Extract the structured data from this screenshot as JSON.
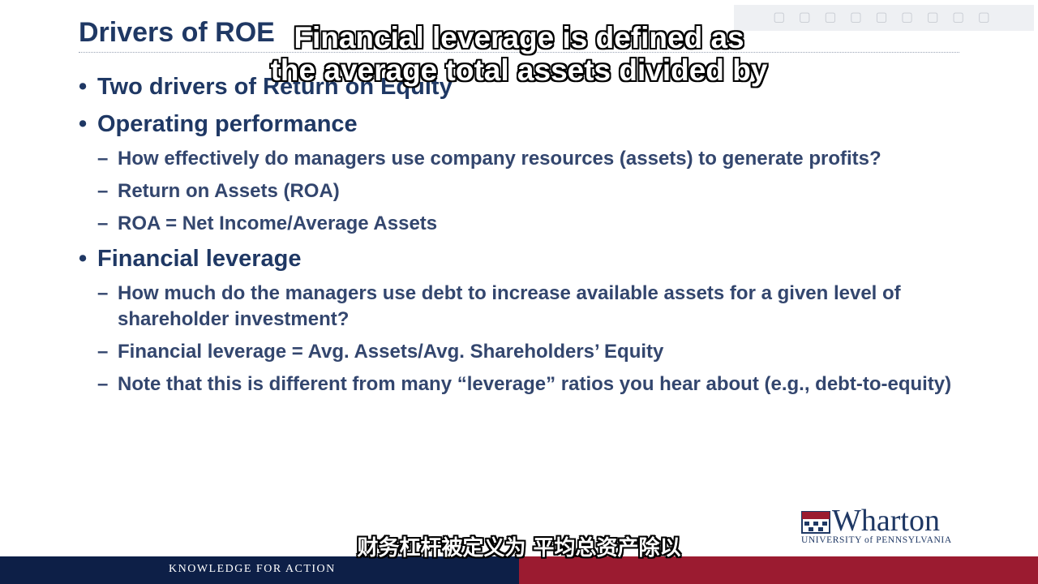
{
  "slide": {
    "title": "Drivers of ROE",
    "items": [
      {
        "level": 1,
        "text": "Two drivers of Return on Equity"
      },
      {
        "level": 1,
        "text": "Operating performance"
      },
      {
        "level": 2,
        "text": "How effectively do managers use company resources (assets) to generate profits?"
      },
      {
        "level": 2,
        "text": "Return on Assets (ROA)"
      },
      {
        "level": 2,
        "text": "ROA = Net Income/Average Assets"
      },
      {
        "level": 1,
        "text": "Financial leverage"
      },
      {
        "level": 2,
        "text": "How much do the managers use debt to increase available assets for a given level of shareholder investment?"
      },
      {
        "level": 2,
        "text": "Financial leverage = Avg. Assets/Avg. Shareholders’ Equity"
      },
      {
        "level": 2,
        "text": "Note that this is different from many “leverage” ratios you hear about (e.g., debt-to-equity)"
      }
    ],
    "bullet_glyph": "•",
    "dash_glyph": "–"
  },
  "subtitles": {
    "english_line1": "Financial leverage is defined as",
    "english_line2": "the average total assets divided by",
    "chinese": "财务杠杆被定义为 平均总资产除以"
  },
  "logo": {
    "name": "Wharton",
    "subtitle": "UNIVERSITY of PENNSYLVANIA"
  },
  "footer": {
    "tagline": "KNOWLEDGE FOR ACTION"
  },
  "colors": {
    "title": "#1f3864",
    "footer_left": "#0d1f47",
    "footer_right": "#9b1b30"
  }
}
